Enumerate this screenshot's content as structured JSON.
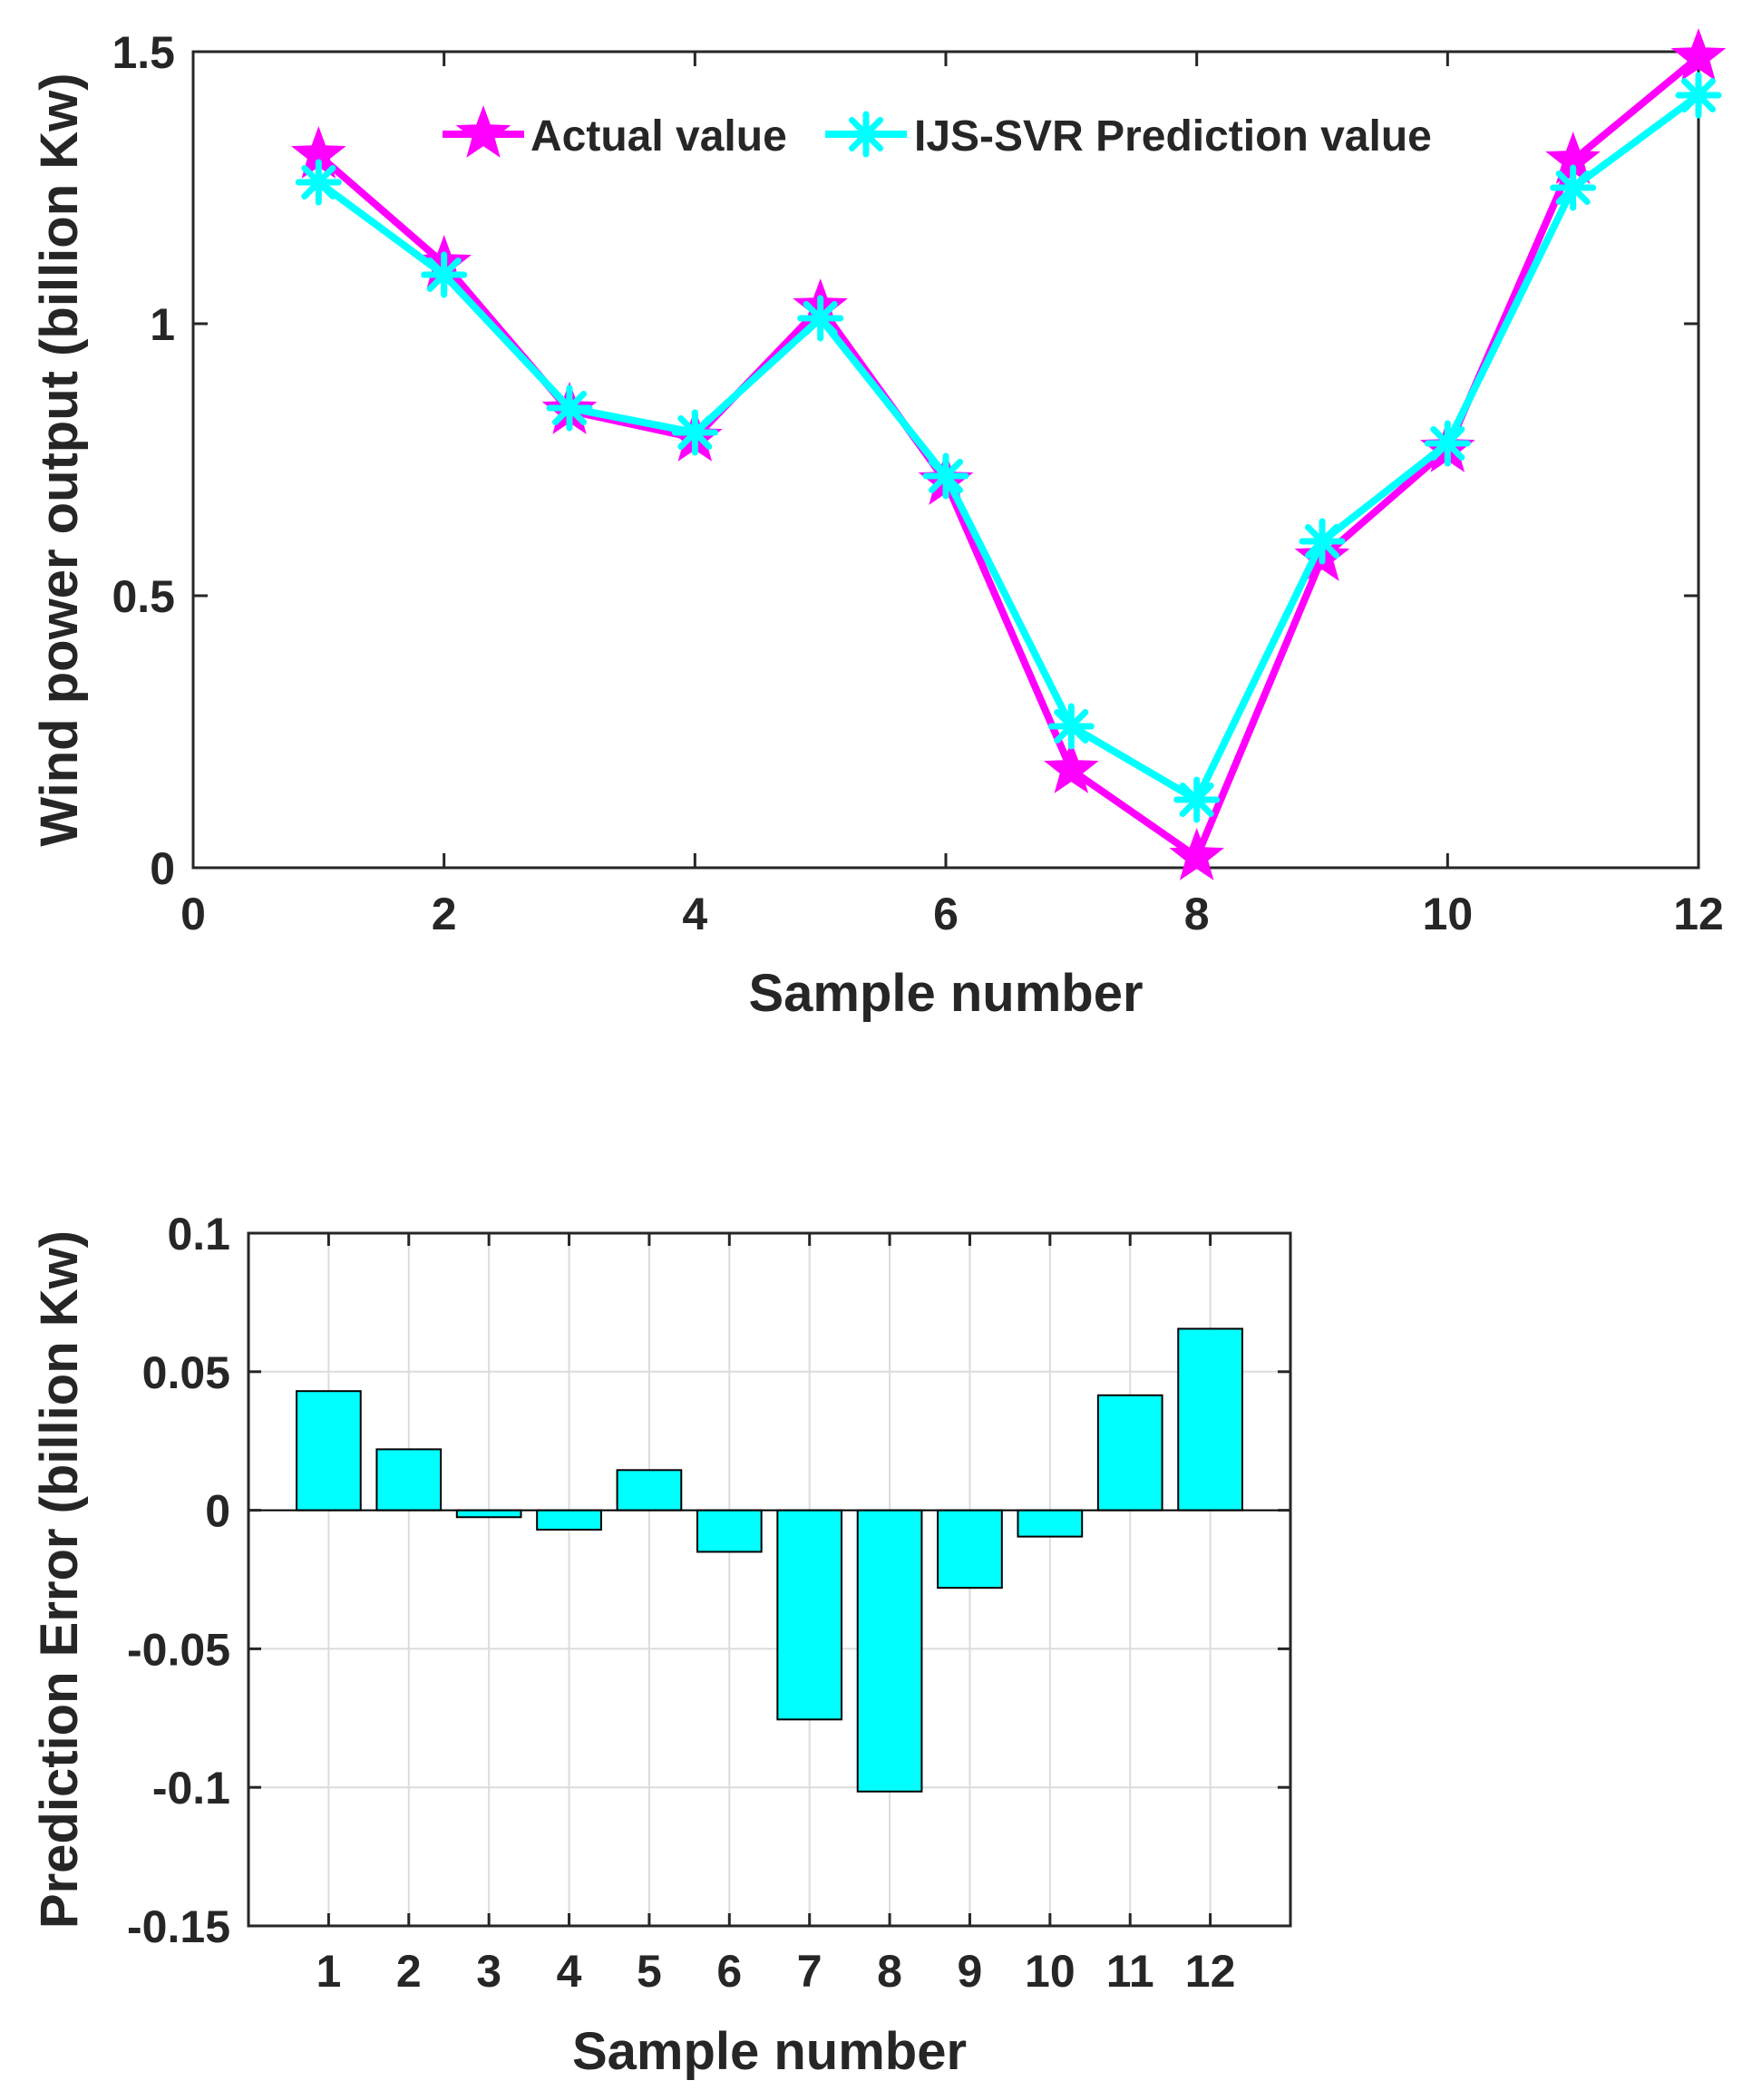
{
  "chart_data": [
    {
      "type": "line",
      "xlabel": "Sample number",
      "ylabel": "Wind power output (billion Kw)",
      "xlim": [
        0,
        12
      ],
      "ylim": [
        0,
        1.5
      ],
      "x_ticks": [
        "0",
        "2",
        "4",
        "6",
        "8",
        "10",
        "12"
      ],
      "y_ticks": [
        "0",
        "0.5",
        "1",
        "1.5"
      ],
      "grid": false,
      "legend_position": "top-center",
      "x": [
        1,
        2,
        3,
        4,
        5,
        6,
        7,
        8,
        9,
        10,
        11,
        12
      ],
      "series": [
        {
          "name": "Actual value",
          "marker": "star",
          "color": "#FF00FF",
          "values": [
            1.31,
            1.11,
            0.84,
            0.79,
            1.03,
            0.71,
            0.18,
            0.02,
            0.57,
            0.77,
            1.3,
            1.49
          ]
        },
        {
          "name": "IJS-SVR Prediction value",
          "marker": "asterisk",
          "color": "#00FFFF",
          "values": [
            1.26,
            1.09,
            0.845,
            0.8,
            1.01,
            0.72,
            0.26,
            0.125,
            0.6,
            0.78,
            1.25,
            1.42
          ]
        }
      ]
    },
    {
      "type": "bar",
      "xlabel": "Sample number",
      "ylabel": "Prediction Error (billion Kw)",
      "ylim": [
        -0.15,
        0.1
      ],
      "y_ticks": [
        "-0.15",
        "-0.1",
        "-0.05",
        "0",
        "0.05",
        "0.1"
      ],
      "grid": true,
      "categories": [
        "1",
        "2",
        "3",
        "4",
        "5",
        "6",
        "7",
        "8",
        "9",
        "10",
        "11",
        "12"
      ],
      "color": "#00FFFF",
      "values": [
        0.043,
        0.022,
        -0.0025,
        -0.007,
        0.0145,
        -0.015,
        -0.0755,
        -0.1015,
        -0.028,
        -0.0095,
        0.0415,
        0.0655
      ]
    }
  ]
}
